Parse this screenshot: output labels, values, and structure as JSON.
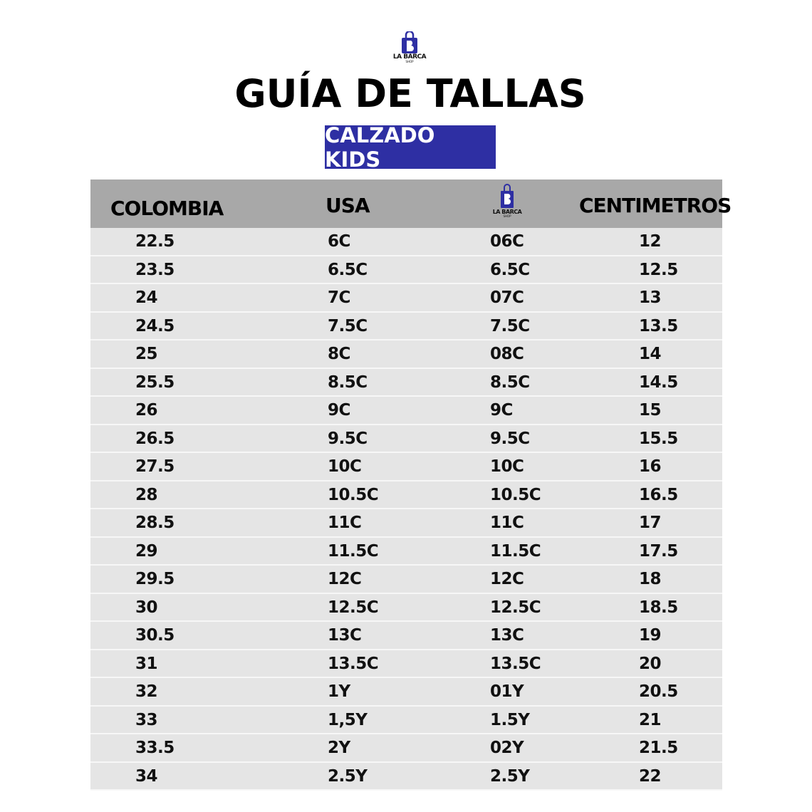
{
  "logo": {
    "brand": "LA BARCA",
    "sub": "SHOP",
    "color": "#2e2fa3"
  },
  "title": "GUÍA DE TALLAS",
  "subtitle": "CALZADO KIDS",
  "colors": {
    "accent": "#2e2fa3",
    "header_bg": "#a8a8a8",
    "row_bg": "#e5e5e5"
  },
  "table": {
    "headers": [
      "COLOMBIA",
      "USA",
      "",
      "CENTIMETROS"
    ],
    "rows": [
      [
        "22.5",
        "6C",
        "06C",
        "12"
      ],
      [
        "23.5",
        "6.5C",
        "6.5C",
        "12.5"
      ],
      [
        "24",
        "7C",
        "07C",
        "13"
      ],
      [
        "24.5",
        "7.5C",
        "7.5C",
        "13.5"
      ],
      [
        "25",
        "8C",
        "08C",
        "14"
      ],
      [
        "25.5",
        "8.5C",
        "8.5C",
        "14.5"
      ],
      [
        "26",
        "9C",
        "9C",
        "15"
      ],
      [
        "26.5",
        "9.5C",
        "9.5C",
        "15.5"
      ],
      [
        "27.5",
        "10C",
        "10C",
        "16"
      ],
      [
        "28",
        "10.5C",
        "10.5C",
        "16.5"
      ],
      [
        "28.5",
        "11C",
        "11C",
        "17"
      ],
      [
        "29",
        "11.5C",
        "11.5C",
        "17.5"
      ],
      [
        "29.5",
        "12C",
        "12C",
        "18"
      ],
      [
        "30",
        "12.5C",
        "12.5C",
        "18.5"
      ],
      [
        "30.5",
        "13C",
        "13C",
        "19"
      ],
      [
        "31",
        "13.5C",
        "13.5C",
        "20"
      ],
      [
        "32",
        "1Y",
        "01Y",
        "20.5"
      ],
      [
        "33",
        "1,5Y",
        "1.5Y",
        "21"
      ],
      [
        "33.5",
        "2Y",
        "02Y",
        "21.5"
      ],
      [
        "34",
        "2.5Y",
        "2.5Y",
        "22"
      ]
    ]
  }
}
